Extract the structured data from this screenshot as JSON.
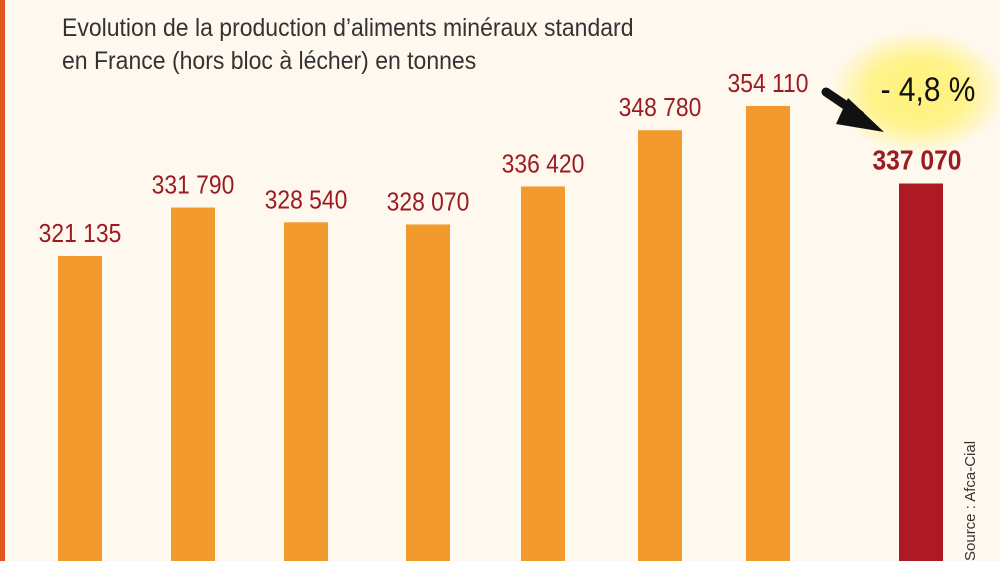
{
  "title_line1": "Evolution de la production d’aliments minéraux standard",
  "title_line2": "en France (hors bloc à lécher) en tonnes",
  "source": "Source : Afca-Cial",
  "colors": {
    "bar": "#f39a2e",
    "bar_highlight": "#ad1a24",
    "value_label": "#9b1b22",
    "halo": "#fff27a",
    "background": "#fff8ee"
  },
  "annotation": {
    "change_label": "- 4,8 %",
    "arrow_icon": "arrow-down-right-icon"
  },
  "chart_data": {
    "type": "bar",
    "values": [
      321135,
      331790,
      328540,
      328070,
      336420,
      348780,
      354110,
      337070
    ],
    "labels": [
      "321 135",
      "331 790",
      "328 540",
      "328 070",
      "336 420",
      "348 780",
      "354 110",
      "337 070"
    ],
    "highlight_index": 7,
    "ylabel": "tonnes",
    "grid": false,
    "legend": "none"
  }
}
